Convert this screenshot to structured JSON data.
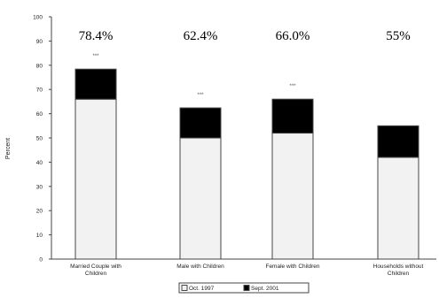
{
  "chart_data": {
    "type": "bar",
    "stacked": true,
    "categories": [
      [
        "Married Couple with",
        "Children"
      ],
      [
        "Male with Children"
      ],
      [
        "Female with Children"
      ],
      [
        "Households without",
        "Children"
      ]
    ],
    "series": [
      {
        "name": "Oct. 1997",
        "color": "#f2f2f2",
        "values": [
          66,
          50,
          52,
          42
        ]
      },
      {
        "name": "Sept. 2001",
        "color": "#000000",
        "values": [
          12.4,
          12.4,
          14.0,
          13.0
        ]
      }
    ],
    "total_labels": [
      "78.4%",
      "62.4%",
      "66.0%",
      "55%"
    ],
    "significance_marks": [
      "***",
      "***",
      "***",
      ""
    ],
    "ylabel": "Percent",
    "ylim": [
      0,
      100
    ],
    "yticks": [
      0,
      10,
      20,
      30,
      40,
      50,
      60,
      70,
      80,
      90,
      100
    ],
    "grid": false,
    "legend": "bottom-center"
  }
}
